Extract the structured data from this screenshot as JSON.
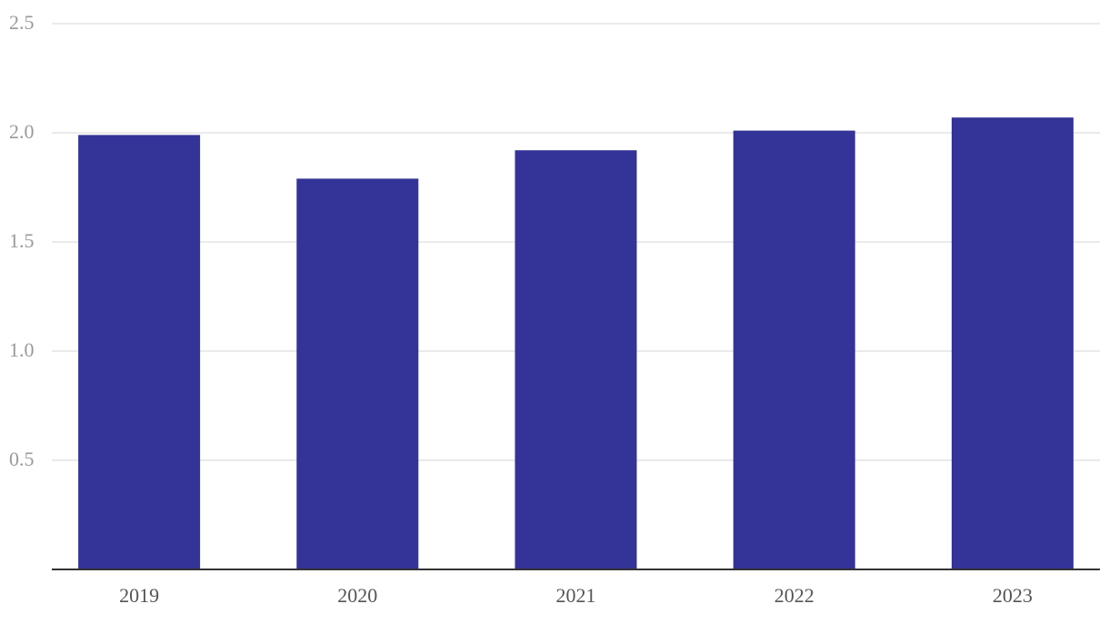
{
  "chart_data": {
    "type": "bar",
    "categories": [
      "2019",
      "2020",
      "2021",
      "2022",
      "2023"
    ],
    "values": [
      1.99,
      1.79,
      1.92,
      2.01,
      2.07
    ],
    "color": "#343397",
    "ylim": [
      0,
      2.5
    ],
    "yticks": [
      0.5,
      {
        "value": 1,
        "label": "1.0"
      },
      1.5,
      {
        "value": 2,
        "label": "2.0"
      },
      2.5
    ],
    "grid": true
  }
}
